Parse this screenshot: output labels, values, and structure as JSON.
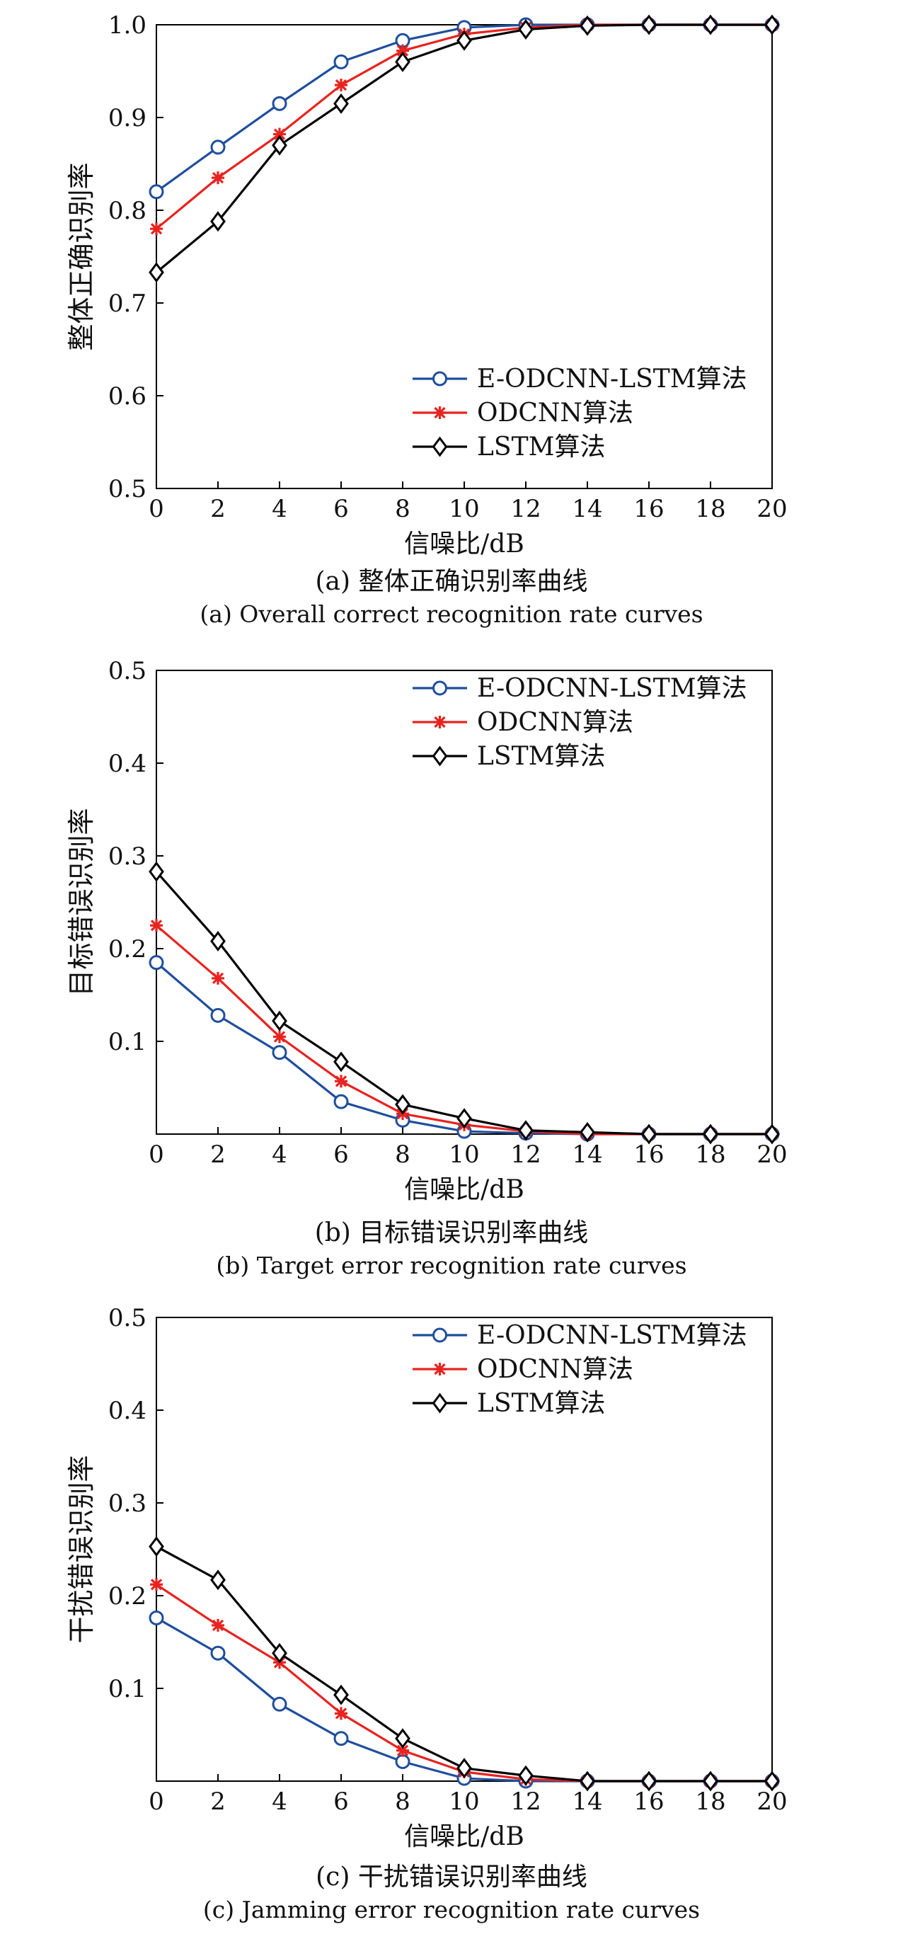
{
  "chart_data": [
    {
      "type": "line",
      "caption_cn": "(a) 整体正确识别率曲线",
      "caption_en": "(a) Overall correct recognition rate curves",
      "xlabel": "信噪比/dB",
      "ylabel": "整体正确识别率",
      "x": [
        0,
        2,
        4,
        6,
        8,
        10,
        12,
        14,
        16,
        18,
        20
      ],
      "xticks": [
        "0",
        "2",
        "4",
        "6",
        "8",
        "10",
        "12",
        "14",
        "16",
        "18",
        "20"
      ],
      "xlim": [
        0,
        20
      ],
      "ylim": [
        0.5,
        1.0
      ],
      "yticks": [
        "0.5",
        "0.6",
        "0.7",
        "0.8",
        "0.9",
        "1.0"
      ],
      "ytick_values": [
        0.5,
        0.6,
        0.7,
        0.8,
        0.9,
        1.0
      ],
      "legend_position": "bottom-right",
      "series": [
        {
          "name": "E-ODCNN-LSTM算法",
          "color": "#1f4e9c",
          "marker": "circle",
          "values": [
            0.82,
            0.868,
            0.915,
            0.96,
            0.983,
            0.997,
            1.0,
            1.0,
            1.0,
            1.0,
            1.0
          ]
        },
        {
          "name": "ODCNN算法",
          "color": "#e8231f",
          "marker": "star",
          "values": [
            0.78,
            0.835,
            0.882,
            0.935,
            0.972,
            0.99,
            0.997,
            1.0,
            1.0,
            1.0,
            1.0
          ]
        },
        {
          "name": "LSTM算法",
          "color": "#000000",
          "marker": "diamond",
          "values": [
            0.733,
            0.788,
            0.87,
            0.915,
            0.96,
            0.983,
            0.995,
            0.999,
            1.0,
            1.0,
            1.0
          ]
        }
      ]
    },
    {
      "type": "line",
      "caption_cn": "(b) 目标错误识别率曲线",
      "caption_en": "(b) Target error recognition rate curves",
      "xlabel": "信噪比/dB",
      "ylabel": "目标错误识别率",
      "x": [
        0,
        2,
        4,
        6,
        8,
        10,
        12,
        14,
        16,
        18,
        20
      ],
      "xticks": [
        "0",
        "2",
        "4",
        "6",
        "8",
        "10",
        "12",
        "14",
        "16",
        "18",
        "20"
      ],
      "xlim": [
        0,
        20
      ],
      "ylim": [
        0,
        0.5
      ],
      "yticks": [
        "0.1",
        "0.2",
        "0.3",
        "0.4",
        "0.5"
      ],
      "ytick_values": [
        0.1,
        0.2,
        0.3,
        0.4,
        0.5
      ],
      "legend_position": "top-right",
      "series": [
        {
          "name": "E-ODCNN-LSTM算法",
          "color": "#1f4e9c",
          "marker": "circle",
          "values": [
            0.185,
            0.128,
            0.088,
            0.035,
            0.015,
            0.003,
            0.001,
            0.0,
            0.0,
            0.0,
            0.0
          ]
        },
        {
          "name": "ODCNN算法",
          "color": "#e8231f",
          "marker": "star",
          "values": [
            0.225,
            0.168,
            0.105,
            0.057,
            0.022,
            0.01,
            0.003,
            0.0,
            0.0,
            0.0,
            0.0
          ]
        },
        {
          "name": "LSTM算法",
          "color": "#000000",
          "marker": "diamond",
          "values": [
            0.283,
            0.208,
            0.122,
            0.078,
            0.032,
            0.017,
            0.004,
            0.002,
            0.0,
            0.0,
            0.0
          ]
        }
      ]
    },
    {
      "type": "line",
      "caption_cn": "(c) 干扰错误识别率曲线",
      "caption_en": "(c) Jamming error recognition rate curves",
      "xlabel": "信噪比/dB",
      "ylabel": "干扰错误识别率",
      "x": [
        0,
        2,
        4,
        6,
        8,
        10,
        12,
        14,
        16,
        18,
        20
      ],
      "xticks": [
        "0",
        "2",
        "4",
        "6",
        "8",
        "10",
        "12",
        "14",
        "16",
        "18",
        "20"
      ],
      "xlim": [
        0,
        20
      ],
      "ylim": [
        0,
        0.5
      ],
      "yticks": [
        "0.1",
        "0.2",
        "0.3",
        "0.4",
        "0.5"
      ],
      "ytick_values": [
        0.1,
        0.2,
        0.3,
        0.4,
        0.5
      ],
      "legend_position": "top-right",
      "series": [
        {
          "name": "E-ODCNN-LSTM算法",
          "color": "#1f4e9c",
          "marker": "circle",
          "values": [
            0.176,
            0.138,
            0.083,
            0.046,
            0.021,
            0.003,
            0.0,
            0.0,
            0.0,
            0.0,
            0.0
          ]
        },
        {
          "name": "ODCNN算法",
          "color": "#e8231f",
          "marker": "star",
          "values": [
            0.212,
            0.168,
            0.128,
            0.073,
            0.033,
            0.01,
            0.002,
            0.0,
            0.0,
            0.0,
            0.0
          ]
        },
        {
          "name": "LSTM算法",
          "color": "#000000",
          "marker": "diamond",
          "values": [
            0.253,
            0.217,
            0.138,
            0.093,
            0.046,
            0.014,
            0.006,
            0.0,
            0.0,
            0.0,
            0.0
          ]
        }
      ]
    }
  ]
}
